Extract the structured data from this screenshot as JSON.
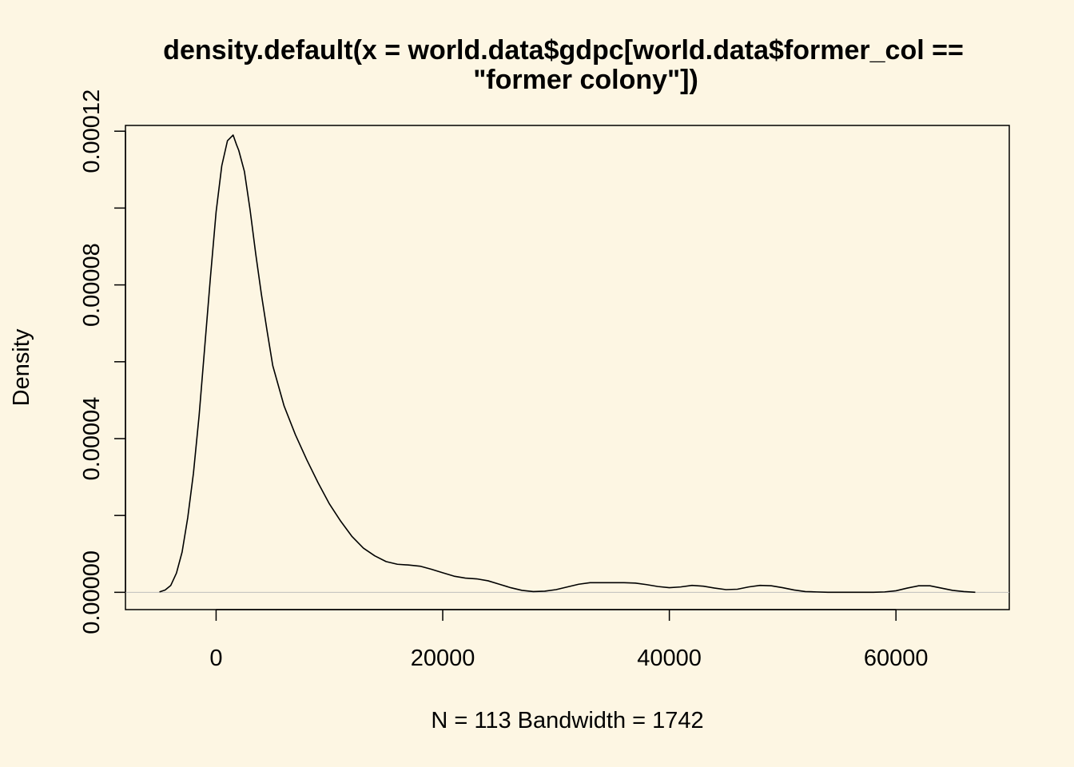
{
  "chart_data": {
    "type": "line",
    "title_line1": "density.default(x = world.data$gdpc[world.data$former_col ==",
    "title_line2": "\"former colony\"])",
    "xlabel": "N = 113   Bandwidth = 1742",
    "ylabel": "Density",
    "xlim": [
      -8000,
      70000
    ],
    "ylim": [
      -4.5e-06,
      0.0001215
    ],
    "x_ticks": [
      0,
      20000,
      40000,
      60000
    ],
    "x_tick_labels": [
      "0",
      "20000",
      "40000",
      "60000"
    ],
    "y_ticks": [
      0,
      2e-05,
      4e-05,
      6e-05,
      8e-05,
      0.0001,
      0.00012
    ],
    "y_tick_labels": [
      "0.00000",
      "",
      "0.00004",
      "",
      "0.00008",
      "",
      "0.00012"
    ],
    "baseline": 0,
    "colors": {
      "background": "#fdf6e3",
      "line": "#000000",
      "baseline": "#bebebe"
    },
    "x": [
      -5000,
      -4500,
      -4000,
      -3500,
      -3000,
      -2500,
      -2000,
      -1500,
      -1000,
      -500,
      0,
      500,
      1000,
      1500,
      1800,
      2000,
      2500,
      3000,
      3500,
      4000,
      4500,
      5000,
      6000,
      7000,
      8000,
      9000,
      10000,
      11000,
      12000,
      13000,
      14000,
      15000,
      16000,
      17000,
      18000,
      19000,
      20000,
      21000,
      22000,
      23000,
      24000,
      25000,
      26000,
      27000,
      28000,
      29000,
      30000,
      31000,
      32000,
      33000,
      34000,
      35000,
      36000,
      37000,
      38000,
      39000,
      40000,
      41000,
      42000,
      43000,
      44000,
      45000,
      46000,
      47000,
      48000,
      49000,
      50000,
      51000,
      52000,
      53000,
      54000,
      55000,
      56000,
      57000,
      58000,
      59000,
      60000,
      61000,
      62000,
      63000,
      64000,
      65000,
      66000,
      67000
    ],
    "y": [
      1e-07,
      6e-07,
      1.8e-06,
      5e-06,
      1.05e-05,
      1.95e-05,
      3.1e-05,
      4.6e-05,
      6.4e-05,
      8.2e-05,
      9.9e-05,
      0.000111,
      0.0001175,
      0.000119,
      0.0001165,
      0.000115,
      0.0001095,
      9.95e-05,
      8.8e-05,
      7.75e-05,
      6.8e-05,
      5.9e-05,
      4.85e-05,
      4.1e-05,
      3.45e-05,
      2.85e-05,
      2.3e-05,
      1.85e-05,
      1.45e-05,
      1.15e-05,
      9.5e-06,
      8e-06,
      7.3e-06,
      7.1e-06,
      6.8e-06,
      6e-06,
      5.1e-06,
      4.2e-06,
      3.7e-06,
      3.5e-06,
      3e-06,
      2.1e-06,
      1.2e-06,
      5e-07,
      2e-07,
      3e-07,
      7e-07,
      1.4e-06,
      2.1e-06,
      2.5e-06,
      2.5e-06,
      2.5e-06,
      2.5e-06,
      2.4e-06,
      2e-06,
      1.5e-06,
      1.2e-06,
      1.4e-06,
      1.8e-06,
      1.6e-06,
      1.1e-06,
      7e-07,
      8e-07,
      1.4e-06,
      1.8e-06,
      1.7e-06,
      1.2e-06,
      6e-07,
      2e-07,
      1e-07,
      0,
      0,
      0,
      0,
      0,
      1e-07,
      4e-07,
      1.1e-06,
      1.7e-06,
      1.7e-06,
      1.1e-06,
      5e-07,
      2e-07,
      0
    ]
  }
}
